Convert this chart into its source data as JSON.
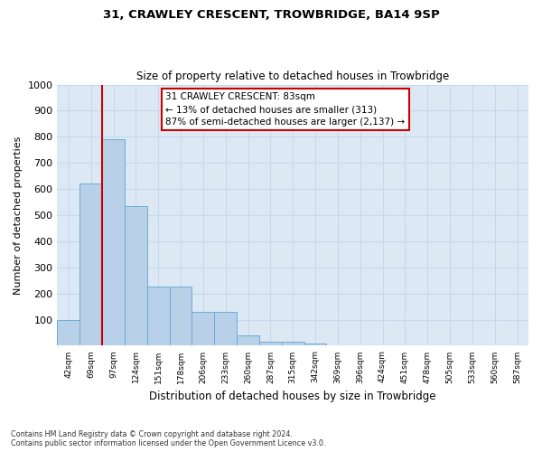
{
  "title1": "31, CRAWLEY CRESCENT, TROWBRIDGE, BA14 9SP",
  "title2": "Size of property relative to detached houses in Trowbridge",
  "xlabel": "Distribution of detached houses by size in Trowbridge",
  "ylabel": "Number of detached properties",
  "categories": [
    "42sqm",
    "69sqm",
    "97sqm",
    "124sqm",
    "151sqm",
    "178sqm",
    "206sqm",
    "233sqm",
    "260sqm",
    "287sqm",
    "315sqm",
    "342sqm",
    "369sqm",
    "396sqm",
    "424sqm",
    "451sqm",
    "478sqm",
    "505sqm",
    "533sqm",
    "560sqm",
    "587sqm"
  ],
  "values": [
    100,
    620,
    790,
    535,
    225,
    225,
    130,
    130,
    40,
    15,
    15,
    10,
    0,
    0,
    0,
    0,
    0,
    0,
    0,
    0,
    0
  ],
  "bar_color": "#b8d0e8",
  "bar_edge_color": "#6baed6",
  "property_line_x": 1.5,
  "annotation_text": "31 CRAWLEY CRESCENT: 83sqm\n← 13% of detached houses are smaller (313)\n87% of semi-detached houses are larger (2,137) →",
  "ylim": [
    0,
    1000
  ],
  "yticks": [
    0,
    100,
    200,
    300,
    400,
    500,
    600,
    700,
    800,
    900,
    1000
  ],
  "footnote1": "Contains HM Land Registry data © Crown copyright and database right 2024.",
  "footnote2": "Contains public sector information licensed under the Open Government Licence v3.0.",
  "bg_color": "#ffffff",
  "grid_color": "#c8d8ec",
  "annotation_box_color": "#ffffff",
  "annotation_box_edge_color": "#cc0000",
  "vline_color": "#cc0000"
}
